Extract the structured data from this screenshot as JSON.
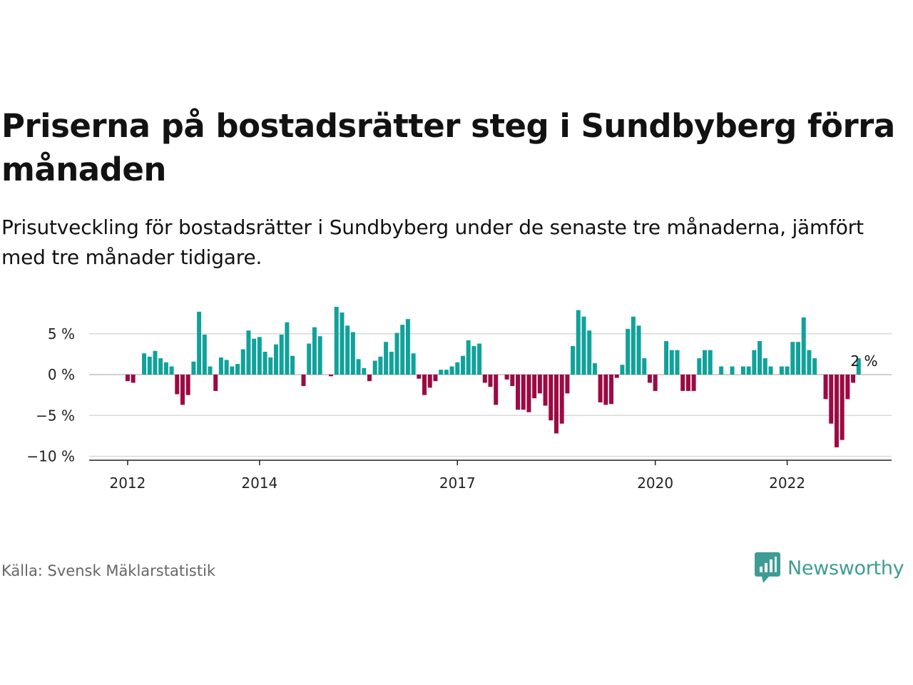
{
  "title": "Priserna på bostadsrätter steg i Sundbyberg förra månaden",
  "subtitle": "Prisutveckling för bostadsrätter i Sundbyberg under de senaste tre månaderna, jämfört med tre månader tidigare.",
  "source": "Källa: Svensk Mäklarstatistik",
  "brand": {
    "name": "Newsworthy",
    "icon": "newsworthy-logo-icon",
    "color": "#3d9d93"
  },
  "colors": {
    "positive": "#10a29a",
    "negative": "#9b0a44",
    "grid": "#d9d9d9",
    "axis": "#222222"
  },
  "chart_data": {
    "type": "bar",
    "title": "Priserna på bostadsrätter steg i Sundbyberg förra månaden",
    "subtitle": "Prisutveckling för bostadsrätter i Sundbyberg under de senaste tre månaderna, jämfört med tre månader tidigare.",
    "xlabel": "",
    "ylabel": "",
    "unit": "%",
    "ylim": [
      -10,
      9
    ],
    "y_ticks": [
      {
        "value": 5,
        "label": "5 %"
      },
      {
        "value": 0,
        "label": "0 %"
      },
      {
        "value": -5,
        "label": "−5 %"
      },
      {
        "value": -10,
        "label": "−10 %"
      }
    ],
    "x_ticks": [
      {
        "date": "2012-01",
        "label": "2012"
      },
      {
        "date": "2014-01",
        "label": "2014"
      },
      {
        "date": "2017-01",
        "label": "2017"
      },
      {
        "date": "2020-01",
        "label": "2020"
      },
      {
        "date": "2022-01",
        "label": "2022"
      }
    ],
    "x_start": "2011-06",
    "x_end": "2023-08",
    "grid": true,
    "annotation": {
      "date": "2023-03",
      "text": "2 %"
    },
    "series": [
      {
        "values": [
          {
            "x": "2011-12",
            "y": 0
          },
          {
            "x": "2012-01",
            "y": -0.8
          },
          {
            "x": "2012-02",
            "y": -1
          },
          {
            "x": "2012-03",
            "y": 0
          },
          {
            "x": "2012-04",
            "y": 2.6
          },
          {
            "x": "2012-05",
            "y": 2.2
          },
          {
            "x": "2012-06",
            "y": 2.9
          },
          {
            "x": "2012-07",
            "y": 2
          },
          {
            "x": "2012-08",
            "y": 1.5
          },
          {
            "x": "2012-09",
            "y": 1
          },
          {
            "x": "2012-10",
            "y": -2.4
          },
          {
            "x": "2012-11",
            "y": -3.7
          },
          {
            "x": "2012-12",
            "y": -2.5
          },
          {
            "x": "2013-01",
            "y": 1.6
          },
          {
            "x": "2013-02",
            "y": 7.7
          },
          {
            "x": "2013-03",
            "y": 4.9
          },
          {
            "x": "2013-04",
            "y": 1
          },
          {
            "x": "2013-05",
            "y": -2
          },
          {
            "x": "2013-06",
            "y": 2.1
          },
          {
            "x": "2013-07",
            "y": 1.8
          },
          {
            "x": "2013-08",
            "y": 1
          },
          {
            "x": "2013-09",
            "y": 1.3
          },
          {
            "x": "2013-10",
            "y": 3.1
          },
          {
            "x": "2013-11",
            "y": 5.4
          },
          {
            "x": "2013-12",
            "y": 4.4
          },
          {
            "x": "2014-01",
            "y": 4.6
          },
          {
            "x": "2014-02",
            "y": 2.8
          },
          {
            "x": "2014-03",
            "y": 2.1
          },
          {
            "x": "2014-04",
            "y": 3.7
          },
          {
            "x": "2014-05",
            "y": 4.9
          },
          {
            "x": "2014-06",
            "y": 6.4
          },
          {
            "x": "2014-07",
            "y": 2.3
          },
          {
            "x": "2014-08",
            "y": 0
          },
          {
            "x": "2014-09",
            "y": -1.4
          },
          {
            "x": "2014-10",
            "y": 3.8
          },
          {
            "x": "2014-11",
            "y": 5.8
          },
          {
            "x": "2014-12",
            "y": 4.7
          },
          {
            "x": "2015-01",
            "y": 0
          },
          {
            "x": "2015-02",
            "y": -0.2
          },
          {
            "x": "2015-03",
            "y": 8.3
          },
          {
            "x": "2015-04",
            "y": 7.6
          },
          {
            "x": "2015-05",
            "y": 6
          },
          {
            "x": "2015-06",
            "y": 5.2
          },
          {
            "x": "2015-07",
            "y": 1.9
          },
          {
            "x": "2015-08",
            "y": 0.8
          },
          {
            "x": "2015-09",
            "y": -0.8
          },
          {
            "x": "2015-10",
            "y": 1.7
          },
          {
            "x": "2015-11",
            "y": 2.2
          },
          {
            "x": "2015-12",
            "y": 4
          },
          {
            "x": "2016-01",
            "y": 2.8
          },
          {
            "x": "2016-02",
            "y": 5.1
          },
          {
            "x": "2016-03",
            "y": 6.1
          },
          {
            "x": "2016-04",
            "y": 6.8
          },
          {
            "x": "2016-05",
            "y": 2.6
          },
          {
            "x": "2016-06",
            "y": -0.5
          },
          {
            "x": "2016-07",
            "y": -2.5
          },
          {
            "x": "2016-08",
            "y": -1.6
          },
          {
            "x": "2016-09",
            "y": -0.8
          },
          {
            "x": "2016-10",
            "y": 0.6
          },
          {
            "x": "2016-11",
            "y": 0.6
          },
          {
            "x": "2016-12",
            "y": 1
          },
          {
            "x": "2017-01",
            "y": 1.5
          },
          {
            "x": "2017-02",
            "y": 2.3
          },
          {
            "x": "2017-03",
            "y": 4.2
          },
          {
            "x": "2017-04",
            "y": 3.5
          },
          {
            "x": "2017-05",
            "y": 3.8
          },
          {
            "x": "2017-06",
            "y": -1
          },
          {
            "x": "2017-07",
            "y": -1.5
          },
          {
            "x": "2017-08",
            "y": -3.7
          },
          {
            "x": "2017-09",
            "y": 0
          },
          {
            "x": "2017-10",
            "y": -0.6
          },
          {
            "x": "2017-11",
            "y": -1.4
          },
          {
            "x": "2017-12",
            "y": -4.3
          },
          {
            "x": "2018-01",
            "y": -4.3
          },
          {
            "x": "2018-02",
            "y": -4.6
          },
          {
            "x": "2018-03",
            "y": -2.9
          },
          {
            "x": "2018-04",
            "y": -2.3
          },
          {
            "x": "2018-05",
            "y": -3.8
          },
          {
            "x": "2018-06",
            "y": -5.6
          },
          {
            "x": "2018-07",
            "y": -7.2
          },
          {
            "x": "2018-08",
            "y": -6
          },
          {
            "x": "2018-09",
            "y": -2.3
          },
          {
            "x": "2018-10",
            "y": 3.5
          },
          {
            "x": "2018-11",
            "y": 7.9
          },
          {
            "x": "2018-12",
            "y": 7.1
          },
          {
            "x": "2019-01",
            "y": 5.4
          },
          {
            "x": "2019-02",
            "y": 1.4
          },
          {
            "x": "2019-03",
            "y": -3.4
          },
          {
            "x": "2019-04",
            "y": -3.7
          },
          {
            "x": "2019-05",
            "y": -3.6
          },
          {
            "x": "2019-06",
            "y": -0.4
          },
          {
            "x": "2019-07",
            "y": 1.2
          },
          {
            "x": "2019-08",
            "y": 5.6
          },
          {
            "x": "2019-09",
            "y": 7.1
          },
          {
            "x": "2019-10",
            "y": 6
          },
          {
            "x": "2019-11",
            "y": 2
          },
          {
            "x": "2019-12",
            "y": -1
          },
          {
            "x": "2020-01",
            "y": -2
          },
          {
            "x": "2020-02",
            "y": 0
          },
          {
            "x": "2020-03",
            "y": 4.1
          },
          {
            "x": "2020-04",
            "y": 3
          },
          {
            "x": "2020-05",
            "y": 3
          },
          {
            "x": "2020-06",
            "y": -2
          },
          {
            "x": "2020-07",
            "y": -2
          },
          {
            "x": "2020-08",
            "y": -2
          },
          {
            "x": "2020-09",
            "y": 2
          },
          {
            "x": "2020-10",
            "y": 3
          },
          {
            "x": "2020-11",
            "y": 3
          },
          {
            "x": "2020-12",
            "y": 0
          },
          {
            "x": "2021-01",
            "y": 1
          },
          {
            "x": "2021-02",
            "y": 0
          },
          {
            "x": "2021-03",
            "y": 1
          },
          {
            "x": "2021-04",
            "y": 0
          },
          {
            "x": "2021-05",
            "y": 1
          },
          {
            "x": "2021-06",
            "y": 1
          },
          {
            "x": "2021-07",
            "y": 3
          },
          {
            "x": "2021-08",
            "y": 4.1
          },
          {
            "x": "2021-09",
            "y": 2
          },
          {
            "x": "2021-10",
            "y": 1
          },
          {
            "x": "2021-11",
            "y": 0
          },
          {
            "x": "2021-12",
            "y": 1
          },
          {
            "x": "2022-01",
            "y": 1
          },
          {
            "x": "2022-02",
            "y": 4
          },
          {
            "x": "2022-03",
            "y": 4
          },
          {
            "x": "2022-04",
            "y": 7
          },
          {
            "x": "2022-05",
            "y": 3
          },
          {
            "x": "2022-06",
            "y": 2
          },
          {
            "x": "2022-07",
            "y": 0
          },
          {
            "x": "2022-08",
            "y": -3
          },
          {
            "x": "2022-09",
            "y": -6
          },
          {
            "x": "2022-10",
            "y": -8.9
          },
          {
            "x": "2022-11",
            "y": -8
          },
          {
            "x": "2022-12",
            "y": -3
          },
          {
            "x": "2023-01",
            "y": -1
          },
          {
            "x": "2023-02",
            "y": 2
          }
        ]
      }
    ]
  }
}
